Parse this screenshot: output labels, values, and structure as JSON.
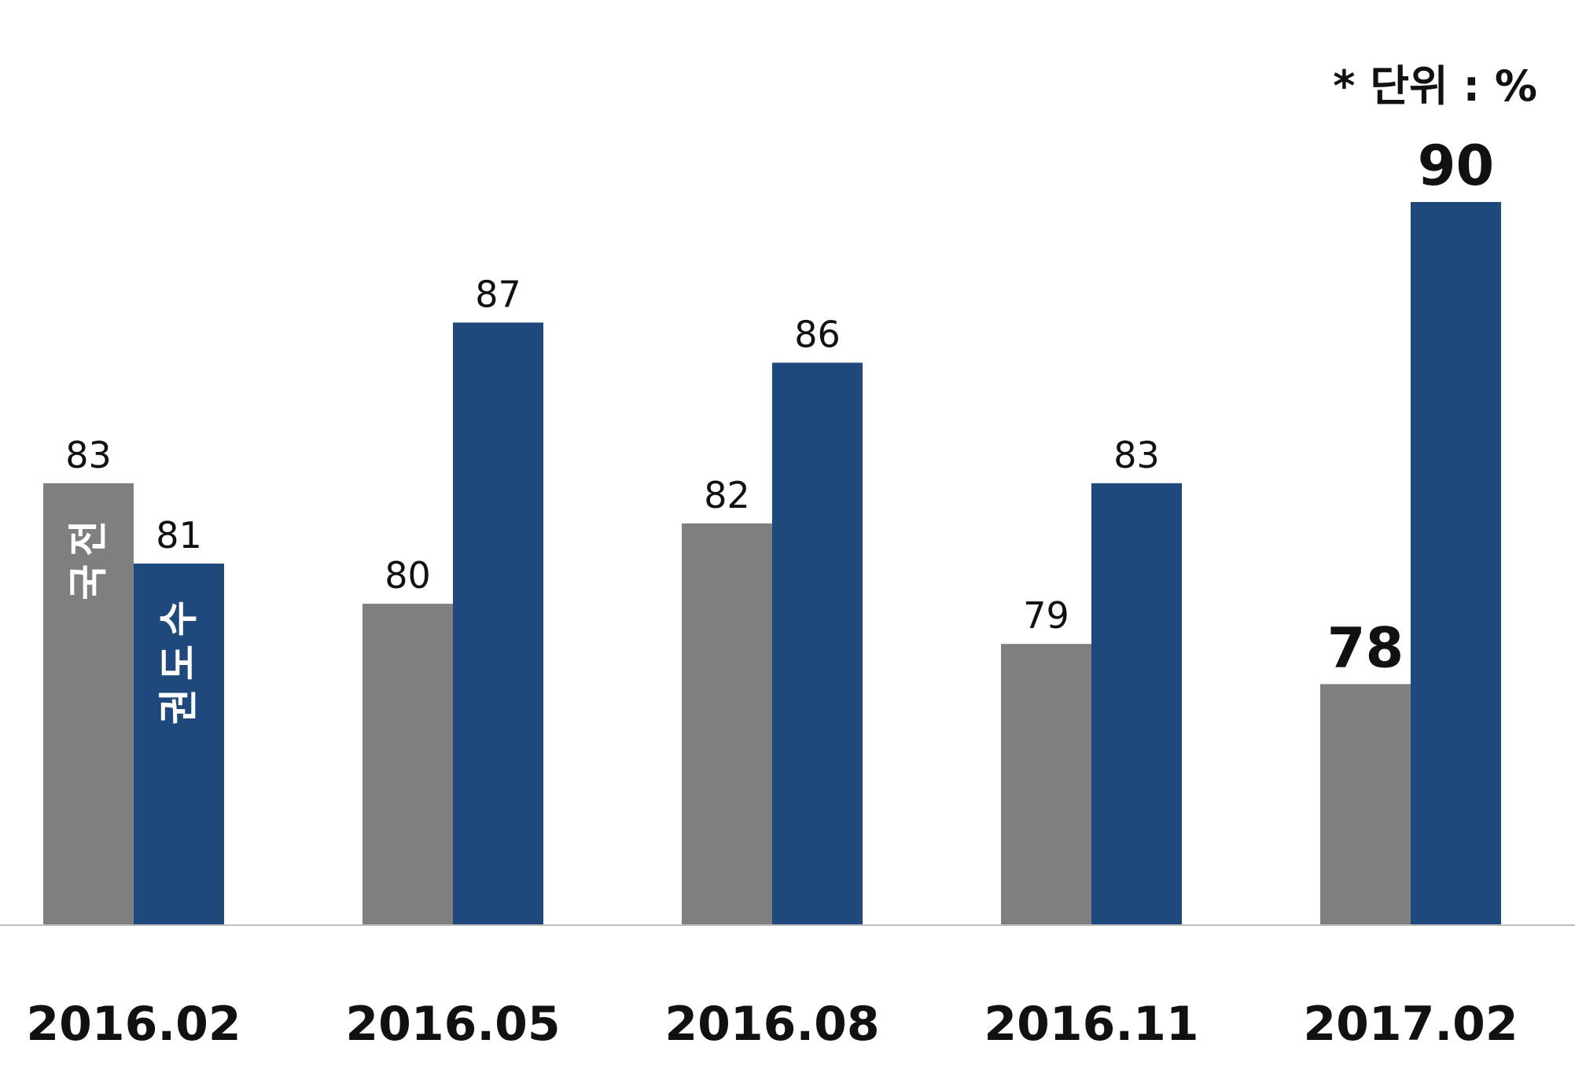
{
  "unit_note": "* 단위 : %",
  "chart_data": {
    "type": "bar",
    "categories": [
      "2016.02",
      "2016.05",
      "2016.08",
      "2016.11",
      "2017.02"
    ],
    "series": [
      {
        "name": "전국",
        "color": "#7f7f7f",
        "values": [
          83,
          80,
          82,
          79,
          78
        ]
      },
      {
        "name": "수도권",
        "color": "#1f497d",
        "values": [
          81,
          87,
          86,
          83,
          90
        ]
      }
    ],
    "ylim": [
      72,
      90
    ],
    "highlight_last": true,
    "grid": false
  }
}
